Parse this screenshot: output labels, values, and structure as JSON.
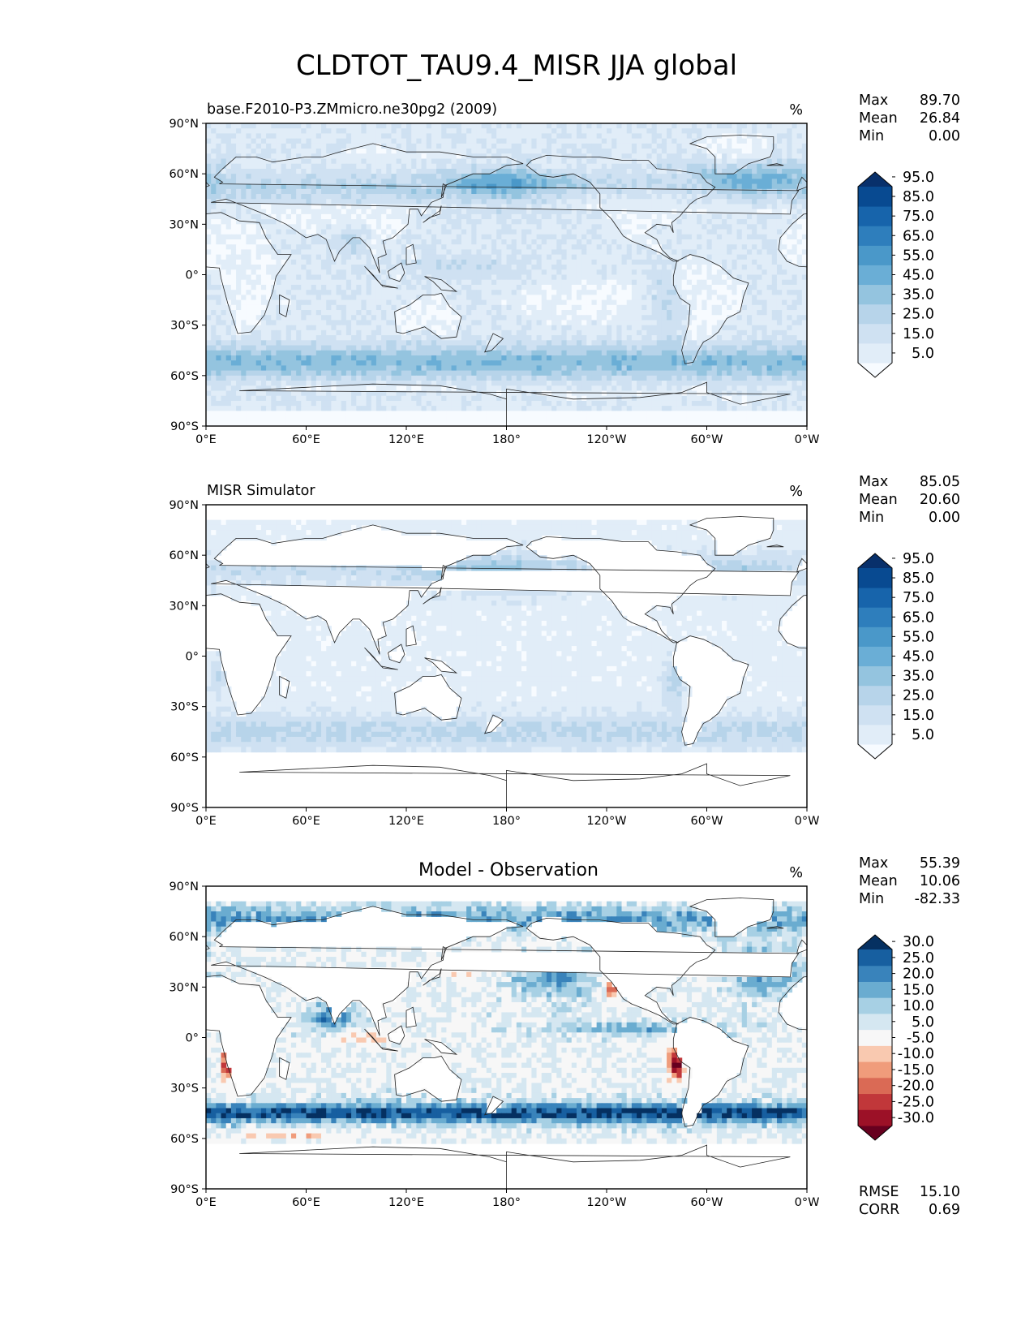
{
  "figure": {
    "title": "CLDTOT_TAU9.4_MISR JJA global"
  },
  "axes": {
    "lat_labels": [
      "90°N",
      "60°N",
      "30°N",
      "0°",
      "30°S",
      "60°S",
      "90°S"
    ],
    "lon_labels": [
      "0°E",
      "60°E",
      "120°E",
      "180°",
      "120°W",
      "60°W",
      "0°W"
    ]
  },
  "panels": [
    {
      "left_title": "base.F2010-P3.ZMmicro.ne30pg2 (2009)",
      "center_title": "",
      "units": "%",
      "stats": [
        {
          "label": "Max",
          "value": "89.70"
        },
        {
          "label": "Mean",
          "value": "26.84"
        },
        {
          "label": "Min",
          "value": "0.00"
        }
      ],
      "extra_stats": [],
      "colorbar": {
        "colors": [
          "#f7fbff",
          "#e1edf8",
          "#cfe1f2",
          "#b7d4ea",
          "#94c4df",
          "#6aaed6",
          "#4a98c9",
          "#2e7ebc",
          "#1764ab",
          "#084a91",
          "#08306b"
        ],
        "tick_labels": [
          "5.0",
          "15.0",
          "25.0",
          "35.0",
          "45.0",
          "55.0",
          "65.0",
          "75.0",
          "85.0",
          "95.0"
        ]
      },
      "field": "model"
    },
    {
      "left_title": "MISR Simulator",
      "center_title": "",
      "units": "%",
      "stats": [
        {
          "label": "Max",
          "value": "85.05"
        },
        {
          "label": "Mean",
          "value": "20.60"
        },
        {
          "label": "Min",
          "value": "0.00"
        }
      ],
      "extra_stats": [],
      "colorbar": {
        "colors": [
          "#f7fbff",
          "#e1edf8",
          "#cfe1f2",
          "#b7d4ea",
          "#94c4df",
          "#6aaed6",
          "#4a98c9",
          "#2e7ebc",
          "#1764ab",
          "#084a91",
          "#08306b"
        ],
        "tick_labels": [
          "5.0",
          "15.0",
          "25.0",
          "35.0",
          "45.0",
          "55.0",
          "65.0",
          "75.0",
          "85.0",
          "95.0"
        ]
      },
      "field": "obs"
    },
    {
      "left_title": "",
      "center_title": "Model - Observation",
      "units": "%",
      "stats": [
        {
          "label": "Max",
          "value": "55.39"
        },
        {
          "label": "Mean",
          "value": "10.06"
        },
        {
          "label": "Min",
          "value": "-82.33"
        }
      ],
      "extra_stats": [
        {
          "label": "RMSE",
          "value": "15.10"
        },
        {
          "label": "CORR",
          "value": "0.69"
        }
      ],
      "colorbar": {
        "colors": [
          "#67001f",
          "#9c1127",
          "#c1373a",
          "#da6a55",
          "#f09c7b",
          "#f9c9b0",
          "#f7f7f7",
          "#d5e7f1",
          "#a7d0e4",
          "#6aacd0",
          "#3983bb",
          "#175fa0",
          "#053061"
        ],
        "tick_labels": [
          "-30.0",
          "-25.0",
          "-20.0",
          "-15.0",
          "-10.0",
          "-5.0",
          "5.0",
          "10.0",
          "15.0",
          "20.0",
          "25.0",
          "30.0"
        ]
      },
      "field": "diff"
    }
  ]
}
